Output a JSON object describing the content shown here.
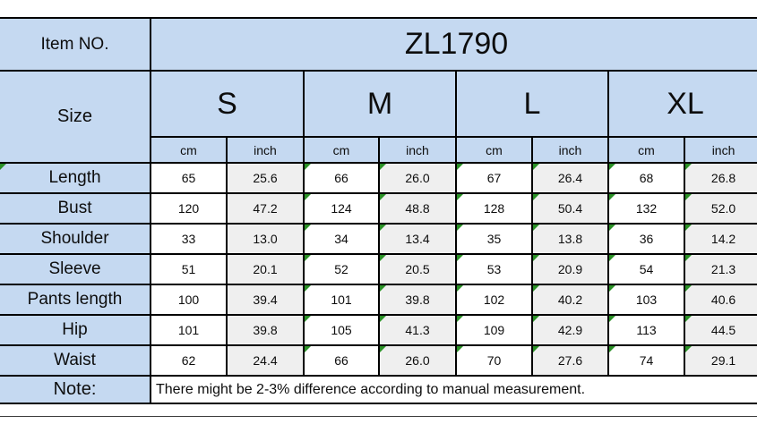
{
  "colors": {
    "header_fill": "#c5d9f1",
    "inch_column_fill": "#efefef",
    "cm_column_fill": "#ffffff",
    "border": "#000000",
    "marker_green": "#2b9127",
    "background": "#ffffff"
  },
  "chart_data": {
    "type": "table",
    "item_no_label": "Item NO.",
    "title": "ZL1790",
    "size_label": "Size",
    "sizes": [
      "S",
      "M",
      "L",
      "XL"
    ],
    "unit_headers": [
      "cm",
      "inch",
      "cm",
      "inch",
      "cm",
      "inch",
      "cm",
      "inch"
    ],
    "rows": [
      {
        "label": "Length",
        "values": [
          "65",
          "25.6",
          "66",
          "26.0",
          "67",
          "26.4",
          "68",
          "26.8"
        ]
      },
      {
        "label": "Bust",
        "values": [
          "120",
          "47.2",
          "124",
          "48.8",
          "128",
          "50.4",
          "132",
          "52.0"
        ]
      },
      {
        "label": "Shoulder",
        "values": [
          "33",
          "13.0",
          "34",
          "13.4",
          "35",
          "13.8",
          "36",
          "14.2"
        ]
      },
      {
        "label": "Sleeve",
        "values": [
          "51",
          "20.1",
          "52",
          "20.5",
          "53",
          "20.9",
          "54",
          "21.3"
        ]
      },
      {
        "label": "Pants length",
        "values": [
          "100",
          "39.4",
          "101",
          "39.8",
          "102",
          "40.2",
          "103",
          "40.6"
        ]
      },
      {
        "label": "Hip",
        "values": [
          "101",
          "39.8",
          "105",
          "41.3",
          "109",
          "42.9",
          "113",
          "44.5"
        ]
      },
      {
        "label": "Waist",
        "values": [
          "62",
          "24.4",
          "66",
          "26.0",
          "70",
          "27.6",
          "74",
          "29.1"
        ]
      }
    ],
    "note_label": "Note:",
    "note": "There might be 2-3% difference according to manual measurement.",
    "markers": {
      "triangle_value_col_start": 2,
      "triangle_label_row_indexes": [
        0
      ]
    }
  }
}
